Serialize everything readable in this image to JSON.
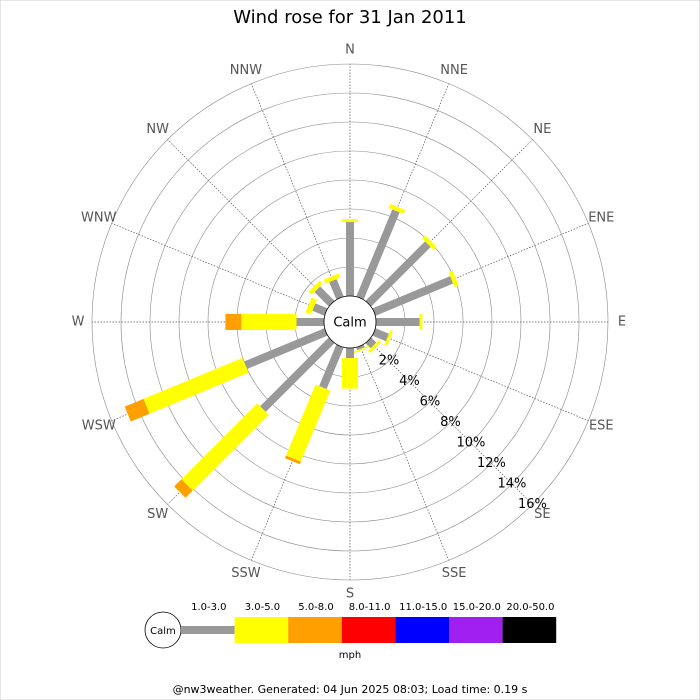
{
  "chart_data": {
    "type": "windrose",
    "title": "Wind rose for 31 Jan 2011",
    "directions": [
      "N",
      "NNE",
      "NE",
      "ENE",
      "E",
      "ESE",
      "SE",
      "SSE",
      "S",
      "SSW",
      "SW",
      "WSW",
      "W",
      "WNW",
      "NW",
      "NNW"
    ],
    "calm_label": "Calm",
    "rlim": [
      0,
      16
    ],
    "rticks": [
      {
        "value": 2,
        "label": "2%"
      },
      {
        "value": 4,
        "label": "4%"
      },
      {
        "value": 6,
        "label": "6%"
      },
      {
        "value": 8,
        "label": "8%"
      },
      {
        "value": 10,
        "label": "10%"
      },
      {
        "value": 12,
        "label": "12%"
      },
      {
        "value": 14,
        "label": "14%"
      },
      {
        "value": 16,
        "label": "16%"
      }
    ],
    "unit": "mph",
    "series": [
      {
        "name": "1.0-3.0",
        "color": "#999999",
        "values": [
          5.1,
          6.5,
          5.8,
          5.8,
          3.0,
          1.0,
          0.5,
          0.2,
          0.7,
          3.1,
          6.7,
          6.0,
          1.9,
          0.9,
          1.4,
          1.3
        ]
      },
      {
        "name": "3.0-5.0",
        "color": "#ffff00",
        "values": [
          0.2,
          0.3,
          0.3,
          0.3,
          0.2,
          0.2,
          0.2,
          0.1,
          2.1,
          5.3,
          7.4,
          7.4,
          3.8,
          0.4,
          0.3,
          0.3
        ]
      },
      {
        "name": "5.0-8.0",
        "color": "#ffa000",
        "values": [
          0,
          0,
          0,
          0,
          0,
          0,
          0,
          0,
          0,
          0.2,
          0.7,
          1.4,
          1.1,
          0,
          0,
          0
        ]
      },
      {
        "name": "8.0-11.0",
        "color": "#ff0000",
        "values": [
          0,
          0,
          0,
          0,
          0,
          0,
          0,
          0,
          0,
          0,
          0,
          0,
          0,
          0,
          0,
          0
        ]
      },
      {
        "name": "11.0-15.0",
        "color": "#0000ff",
        "values": [
          0,
          0,
          0,
          0,
          0,
          0,
          0,
          0,
          0,
          0,
          0,
          0,
          0,
          0,
          0,
          0
        ]
      },
      {
        "name": "15.0-20.0",
        "color": "#a020f0",
        "values": [
          0,
          0,
          0,
          0,
          0,
          0,
          0,
          0,
          0,
          0,
          0,
          0,
          0,
          0,
          0,
          0
        ]
      },
      {
        "name": "20.0-50.0",
        "color": "#000000",
        "values": [
          0,
          0,
          0,
          0,
          0,
          0,
          0,
          0,
          0,
          0,
          0,
          0,
          0,
          0,
          0,
          0
        ]
      }
    ],
    "footer": "@nw3weather. Generated: 04 Jun 2025 08:03; Load time: 0.19 s"
  }
}
